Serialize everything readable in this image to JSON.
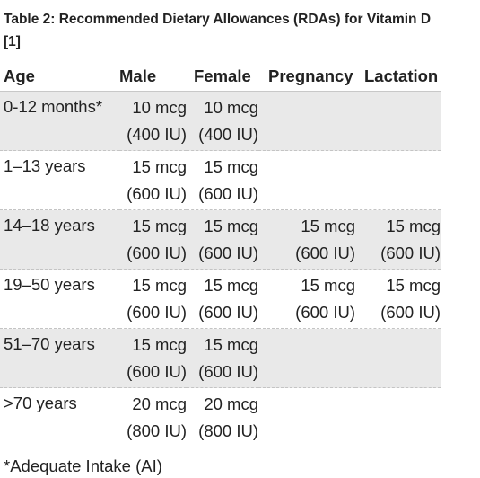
{
  "caption": "Table 2: Recommended Dietary Allowances (RDAs) for Vitamin D [1]",
  "headers": {
    "age": "Age",
    "male": "Male",
    "female": "Female",
    "pregnancy": "Pregnancy",
    "lactation": "Lactation"
  },
  "rows": [
    {
      "age": "0-12 months*",
      "male": {
        "mcg": "10 mcg",
        "iu": "(400 IU)"
      },
      "female": {
        "mcg": "10 mcg",
        "iu": "(400 IU)"
      },
      "pregnancy": {
        "mcg": "",
        "iu": ""
      },
      "lactation": {
        "mcg": "",
        "iu": ""
      }
    },
    {
      "age": "1–13 years",
      "male": {
        "mcg": "15 mcg",
        "iu": "(600 IU)"
      },
      "female": {
        "mcg": "15 mcg",
        "iu": "(600 IU)"
      },
      "pregnancy": {
        "mcg": "",
        "iu": ""
      },
      "lactation": {
        "mcg": "",
        "iu": ""
      }
    },
    {
      "age": "14–18 years",
      "male": {
        "mcg": "15 mcg",
        "iu": "(600 IU)"
      },
      "female": {
        "mcg": "15 mcg",
        "iu": "(600 IU)"
      },
      "pregnancy": {
        "mcg": "15 mcg",
        "iu": "(600 IU)"
      },
      "lactation": {
        "mcg": "15 mcg",
        "iu": "(600 IU)"
      }
    },
    {
      "age": "19–50 years",
      "male": {
        "mcg": "15 mcg",
        "iu": "(600 IU)"
      },
      "female": {
        "mcg": "15 mcg",
        "iu": "(600 IU)"
      },
      "pregnancy": {
        "mcg": "15 mcg",
        "iu": "(600 IU)"
      },
      "lactation": {
        "mcg": "15 mcg",
        "iu": "(600 IU)"
      }
    },
    {
      "age": "51–70 years",
      "male": {
        "mcg": "15 mcg",
        "iu": "(600 IU)"
      },
      "female": {
        "mcg": "15 mcg",
        "iu": "(600 IU)"
      },
      "pregnancy": {
        "mcg": "",
        "iu": ""
      },
      "lactation": {
        "mcg": "",
        "iu": ""
      }
    },
    {
      "age": ">70 years",
      "male": {
        "mcg": "20 mcg",
        "iu": "(800 IU)"
      },
      "female": {
        "mcg": "20 mcg",
        "iu": "(800 IU)"
      },
      "pregnancy": {
        "mcg": "",
        "iu": ""
      },
      "lactation": {
        "mcg": "",
        "iu": ""
      }
    }
  ],
  "footnote": "*Adequate Intake (AI)"
}
